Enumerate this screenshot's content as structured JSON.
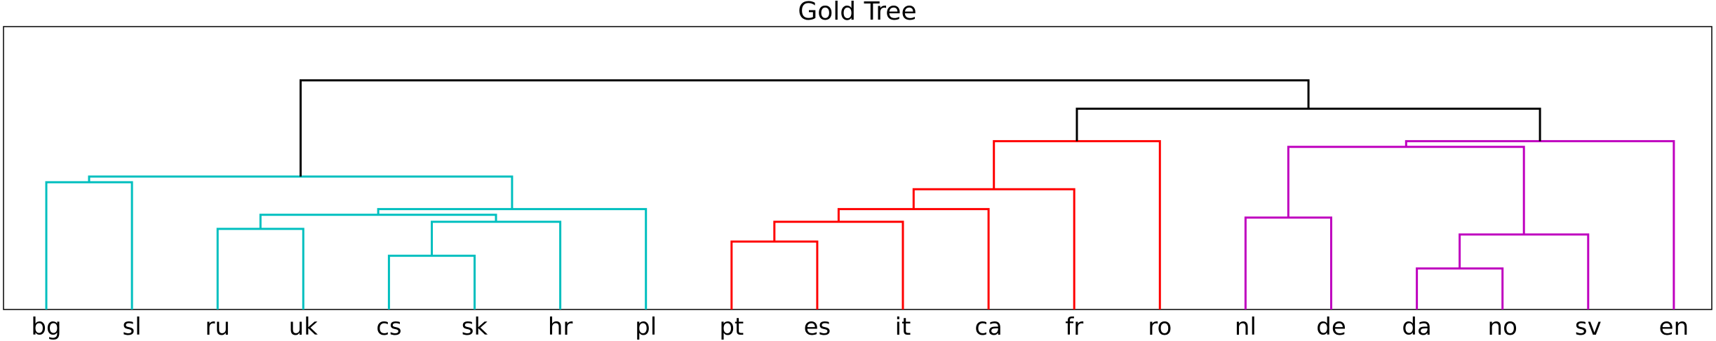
{
  "chart_data": {
    "type": "dendrogram",
    "title": "Gold Tree",
    "xlabel": "",
    "ylabel": "",
    "leaves": [
      "bg",
      "sl",
      "ru",
      "uk",
      "cs",
      "sk",
      "hr",
      "pl",
      "pt",
      "es",
      "it",
      "ca",
      "fr",
      "ro",
      "nl",
      "de",
      "da",
      "no",
      "sv",
      "en"
    ],
    "merge_height_range": [
      0,
      1
    ],
    "merges": [
      {
        "left": "bg",
        "right": "sl",
        "height": 0.45,
        "color": "#00bfbf"
      },
      {
        "left": "ru",
        "right": "uk",
        "height": 0.285,
        "color": "#00bfbf"
      },
      {
        "left": "cs",
        "right": "sk",
        "height": 0.19,
        "color": "#00bfbf"
      },
      {
        "left": "cs+sk",
        "right": "hr",
        "height": 0.31,
        "color": "#00bfbf"
      },
      {
        "left": "ru+uk",
        "right": "cs+sk+hr",
        "height": 0.335,
        "color": "#00bfbf"
      },
      {
        "left": "ru+uk+cs+sk+hr",
        "right": "pl",
        "height": 0.355,
        "color": "#00bfbf"
      },
      {
        "left": "bg+sl",
        "right": "ru+uk+cs+sk+hr+pl",
        "height": 0.47,
        "color": "#00bfbf"
      },
      {
        "left": "pt",
        "right": "es",
        "height": 0.24,
        "color": "#ff0000"
      },
      {
        "left": "pt+es",
        "right": "it",
        "height": 0.31,
        "color": "#ff0000"
      },
      {
        "left": "pt+es+it",
        "right": "ca",
        "height": 0.355,
        "color": "#ff0000"
      },
      {
        "left": "pt+es+it+ca",
        "right": "fr",
        "height": 0.425,
        "color": "#ff0000"
      },
      {
        "left": "pt+es+it+ca+fr",
        "right": "ro",
        "height": 0.595,
        "color": "#ff0000"
      },
      {
        "left": "nl",
        "right": "de",
        "height": 0.325,
        "color": "#bf00bf"
      },
      {
        "left": "da",
        "right": "no",
        "height": 0.145,
        "color": "#bf00bf"
      },
      {
        "left": "da+no",
        "right": "sv",
        "height": 0.265,
        "color": "#bf00bf"
      },
      {
        "left": "nl+de",
        "right": "da+no+sv",
        "height": 0.575,
        "color": "#bf00bf"
      },
      {
        "left": "nl+de+da+no+sv",
        "right": "en",
        "height": 0.595,
        "color": "#bf00bf"
      },
      {
        "left": "pt+es+it+ca+fr+ro",
        "right": "nl+de+da+no+sv+en",
        "height": 0.71,
        "color": "#000000"
      },
      {
        "left": "bg+sl+ru+uk+cs+sk+hr+pl",
        "right": "pt+es+it+ca+fr+ro+nl+de+da+no+sv+en",
        "height": 0.81,
        "color": "#000000"
      }
    ],
    "colors": {
      "slavic": "#00bfbf",
      "romance": "#ff0000",
      "germanic": "#bf00bf",
      "root": "#000000"
    },
    "grid": false
  }
}
